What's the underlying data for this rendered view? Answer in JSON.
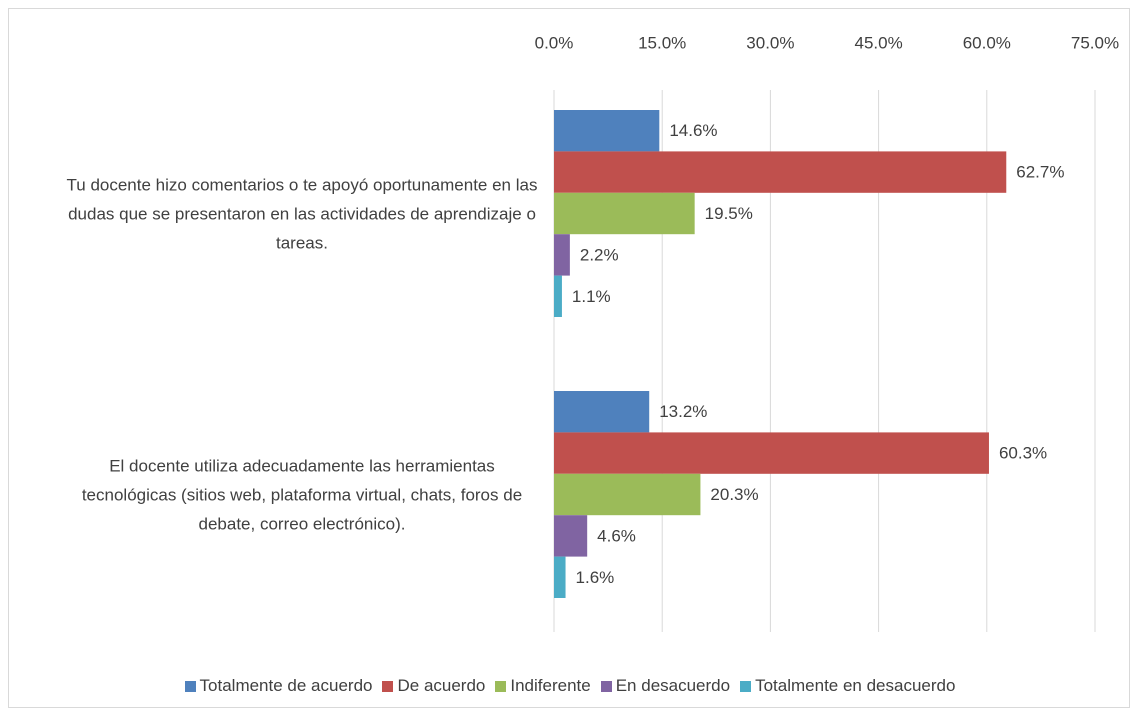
{
  "chart_data": {
    "type": "hbar",
    "categories": [
      "Tu docente hizo comentarios o te apoyó oportunamente en las dudas que se presentaron en las actividades de aprendizaje o tareas.",
      "El docente utiliza adecuadamente las herramientas tecnológicas (sitios web, plataforma virtual, chats, foros de debate, correo electrónico)."
    ],
    "series": [
      {
        "name": "Totalmente de acuerdo",
        "color": "#4f81bd",
        "values": [
          14.6,
          13.2
        ],
        "value_labels": [
          "14.6%",
          "13.2%"
        ]
      },
      {
        "name": "De acuerdo",
        "color": "#c0504d",
        "values": [
          62.7,
          60.3
        ],
        "value_labels": [
          "62.7%",
          "60.3%"
        ]
      },
      {
        "name": "Indiferente",
        "color": "#9bbb59",
        "values": [
          19.5,
          20.3
        ],
        "value_labels": [
          "19.5%",
          "20.3%"
        ]
      },
      {
        "name": "En desacuerdo",
        "color": "#8064a2",
        "values": [
          2.2,
          4.6
        ],
        "value_labels": [
          "2.2%",
          "4.6%"
        ]
      },
      {
        "name": "Totalmente en desacuerdo",
        "color": "#4bacc6",
        "values": [
          1.1,
          1.6
        ],
        "value_labels": [
          "1.1%",
          "1.6%"
        ]
      }
    ],
    "xlim": [
      0,
      75
    ],
    "xticks": [
      {
        "value": 0,
        "label": "0.0%"
      },
      {
        "value": 15,
        "label": "15.0%"
      },
      {
        "value": 30,
        "label": "30.0%"
      },
      {
        "value": 45,
        "label": "45.0%"
      },
      {
        "value": 60,
        "label": "60.0%"
      },
      {
        "value": 75,
        "label": "75.0%"
      }
    ],
    "grid": true,
    "legend": "bottom"
  }
}
